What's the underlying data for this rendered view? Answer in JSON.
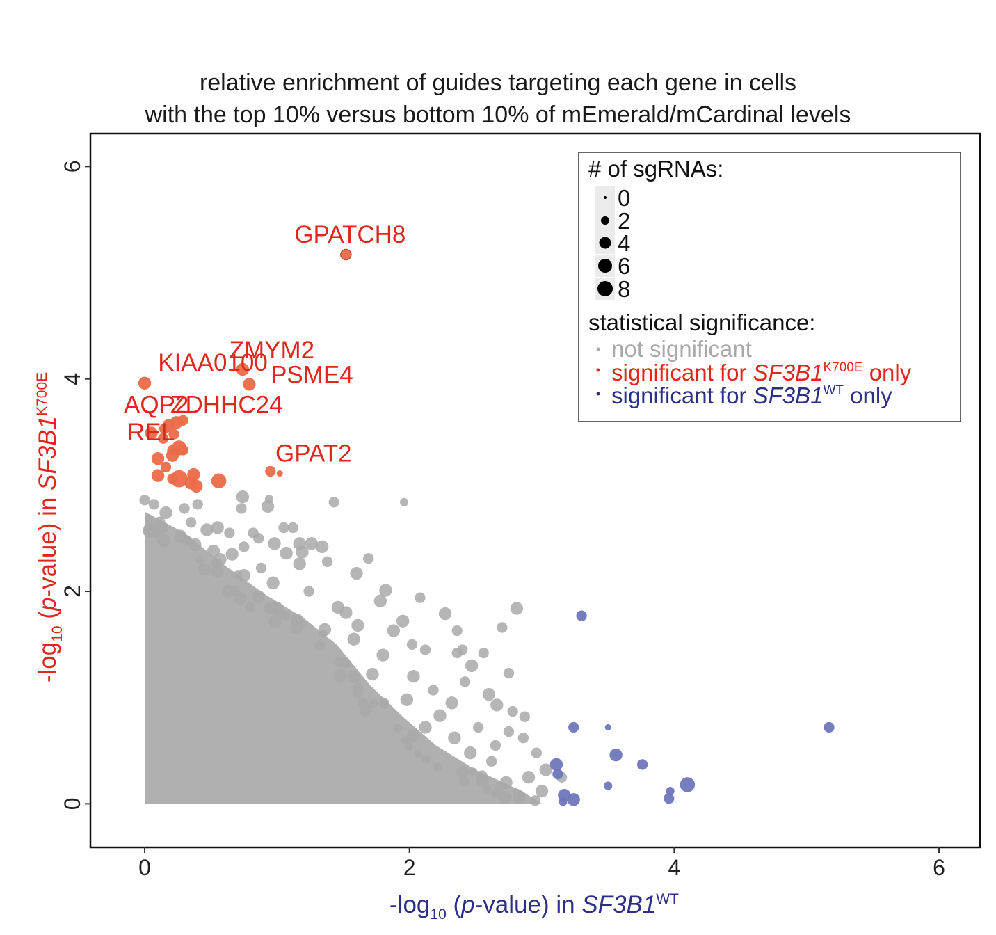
{
  "colors": {
    "not_significant": "#a9a9a9",
    "significant_mutant": "#ec6a48",
    "significant_wt": "#6f77bd",
    "label_red": "#e0261d",
    "label_blue": "#2b2f86",
    "legend_dot": "#000000"
  },
  "chart_data": {
    "type": "scatter",
    "title": [
      "relative enrichment of guides targeting each gene in cells",
      "with the top 10% versus bottom 10% of mEmerald/mCardinal levels"
    ],
    "xlabel": {
      "prefix": "-log",
      "sub": "10",
      "mid": " (",
      "italic_p": "p",
      "rest": "-value) in ",
      "gene": "SF3B1",
      "sup": "WT"
    },
    "ylabel": {
      "prefix": "-log",
      "sub": "10",
      "mid": " (",
      "italic_p": "p",
      "rest": "-value) in ",
      "gene": "SF3B1",
      "sup": "K700E"
    },
    "xlim": [
      -0.41,
      6.31
    ],
    "ylim": [
      -0.41,
      6.31
    ],
    "x_ticks": [
      "0",
      "2",
      "4",
      "6"
    ],
    "y_ticks": [
      "0",
      "2",
      "4",
      "6"
    ],
    "grid": false,
    "legend_position": "top-right",
    "legend": {
      "size_title": "# of sgRNAs:",
      "size_entries": [
        "0",
        "2",
        "4",
        "6",
        "8"
      ],
      "color_title": "statistical significance:",
      "color_entries": [
        {
          "text": "not significant",
          "category": "not_significant"
        },
        {
          "text_pre": "significant for ",
          "gene": "SF3B1",
          "sup": "K700E",
          "text_post": " only",
          "category": "significant_mutant"
        },
        {
          "text_pre": "significant for ",
          "gene": "SF3B1",
          "sup": "WT",
          "text_post": " only",
          "category": "significant_wt"
        }
      ]
    },
    "series": [
      {
        "category": "significant_mutant",
        "points": [
          {
            "x": 1.52,
            "y": 5.17,
            "size": 3,
            "label": "GPATCH8"
          },
          {
            "x": 0.0,
            "y": 3.96,
            "size": 4,
            "label": "KIAA0100"
          },
          {
            "x": 0.74,
            "y": 4.09,
            "size": 4,
            "label": "ZMYM2"
          },
          {
            "x": 0.79,
            "y": 3.95,
            "size": 4,
            "label": "PSME4"
          },
          {
            "x": 0.95,
            "y": 3.13,
            "size": 3,
            "label": "GPAT2"
          },
          {
            "x": 1.02,
            "y": 3.11,
            "size": 1
          },
          {
            "x": 0.18,
            "y": 3.56,
            "size": 4
          },
          {
            "x": 0.24,
            "y": 3.59,
            "size": 4
          },
          {
            "x": 0.29,
            "y": 3.61,
            "size": 3
          },
          {
            "x": 0.15,
            "y": 3.53,
            "size": 3
          },
          {
            "x": 0.22,
            "y": 3.48,
            "size": 3
          },
          {
            "x": 0.14,
            "y": 3.44,
            "size": 3
          },
          {
            "x": 0.05,
            "y": 3.49,
            "size": 4
          },
          {
            "x": 0.26,
            "y": 3.35,
            "size": 5
          },
          {
            "x": 0.21,
            "y": 3.33,
            "size": 3
          },
          {
            "x": 0.29,
            "y": 3.33,
            "size": 3
          },
          {
            "x": 0.21,
            "y": 3.28,
            "size": 4
          },
          {
            "x": 0.1,
            "y": 3.25,
            "size": 4
          },
          {
            "x": 0.16,
            "y": 3.17,
            "size": 3
          },
          {
            "x": 0.37,
            "y": 3.1,
            "size": 4
          },
          {
            "x": 0.1,
            "y": 3.09,
            "size": 4
          },
          {
            "x": 0.26,
            "y": 3.06,
            "size": 6
          },
          {
            "x": 0.21,
            "y": 3.06,
            "size": 3
          },
          {
            "x": 0.56,
            "y": 3.04,
            "size": 5
          },
          {
            "x": 0.35,
            "y": 3.02,
            "size": 4
          },
          {
            "x": 0.39,
            "y": 2.99,
            "size": 4
          }
        ],
        "label_only": [
          {
            "x": 0.0,
            "y": 3.68,
            "label": "AQP2"
          },
          {
            "x": 0.3,
            "y": 3.68,
            "label": "ZDHHC24"
          },
          {
            "x": 0.0,
            "y": 3.42,
            "label": "REL"
          }
        ]
      },
      {
        "category": "significant_wt",
        "points": [
          {
            "x": 3.3,
            "y": 1.77,
            "size": 3
          },
          {
            "x": 5.17,
            "y": 0.72,
            "size": 3
          },
          {
            "x": 3.24,
            "y": 0.72,
            "size": 3
          },
          {
            "x": 3.5,
            "y": 0.72,
            "size": 1
          },
          {
            "x": 3.56,
            "y": 0.46,
            "size": 4
          },
          {
            "x": 3.76,
            "y": 0.37,
            "size": 3
          },
          {
            "x": 3.11,
            "y": 0.37,
            "size": 4
          },
          {
            "x": 3.12,
            "y": 0.28,
            "size": 3
          },
          {
            "x": 4.1,
            "y": 0.18,
            "size": 5
          },
          {
            "x": 3.5,
            "y": 0.17,
            "size": 2
          },
          {
            "x": 3.97,
            "y": 0.12,
            "size": 2
          },
          {
            "x": 3.17,
            "y": 0.08,
            "size": 4
          },
          {
            "x": 3.24,
            "y": 0.04,
            "size": 4
          },
          {
            "x": 3.96,
            "y": 0.05,
            "size": 3
          },
          {
            "x": 3.16,
            "y": 0.02,
            "size": 2
          }
        ]
      },
      {
        "category": "not_significant",
        "points": [
          {
            "x": 1.96,
            "y": 2.84,
            "size": 2
          },
          {
            "x": 1.43,
            "y": 2.84,
            "size": 3
          },
          {
            "x": 0.74,
            "y": 2.89,
            "size": 4
          },
          {
            "x": 0.94,
            "y": 2.87,
            "size": 2
          },
          {
            "x": 0.73,
            "y": 2.78,
            "size": 3
          },
          {
            "x": 0.93,
            "y": 2.8,
            "size": 4
          },
          {
            "x": 1.05,
            "y": 2.6,
            "size": 3
          },
          {
            "x": 1.12,
            "y": 2.6,
            "size": 3
          },
          {
            "x": 0.55,
            "y": 2.6,
            "size": 4
          },
          {
            "x": 0.64,
            "y": 2.55,
            "size": 3
          },
          {
            "x": 0.82,
            "y": 2.55,
            "size": 3
          },
          {
            "x": 0.86,
            "y": 2.5,
            "size": 3
          },
          {
            "x": 0.98,
            "y": 2.45,
            "size": 4
          },
          {
            "x": 1.17,
            "y": 2.45,
            "size": 4
          },
          {
            "x": 1.26,
            "y": 2.45,
            "size": 4
          },
          {
            "x": 1.34,
            "y": 2.42,
            "size": 4
          },
          {
            "x": 0.75,
            "y": 2.42,
            "size": 3
          },
          {
            "x": 1.07,
            "y": 2.36,
            "size": 4
          },
          {
            "x": 1.19,
            "y": 2.37,
            "size": 4
          },
          {
            "x": 1.38,
            "y": 2.28,
            "size": 3
          },
          {
            "x": 1.69,
            "y": 2.31,
            "size": 3
          },
          {
            "x": 0.57,
            "y": 2.3,
            "size": 4
          },
          {
            "x": 1.17,
            "y": 2.26,
            "size": 4
          },
          {
            "x": 0.88,
            "y": 2.22,
            "size": 3
          },
          {
            "x": 0.75,
            "y": 2.15,
            "size": 4
          },
          {
            "x": 1.6,
            "y": 2.17,
            "size": 4
          },
          {
            "x": 1.82,
            "y": 2.01,
            "size": 4
          },
          {
            "x": 2.08,
            "y": 1.94,
            "size": 3
          },
          {
            "x": 1.78,
            "y": 1.91,
            "size": 4
          },
          {
            "x": 2.81,
            "y": 1.84,
            "size": 4
          },
          {
            "x": 1.52,
            "y": 1.8,
            "size": 4
          },
          {
            "x": 2.27,
            "y": 1.79,
            "size": 4
          },
          {
            "x": 1.61,
            "y": 1.68,
            "size": 4
          },
          {
            "x": 2.7,
            "y": 1.66,
            "size": 3
          },
          {
            "x": 1.95,
            "y": 1.72,
            "size": 4
          },
          {
            "x": 1.88,
            "y": 1.63,
            "size": 4
          },
          {
            "x": 2.36,
            "y": 1.63,
            "size": 3
          },
          {
            "x": 2.02,
            "y": 1.5,
            "size": 3
          },
          {
            "x": 2.12,
            "y": 1.45,
            "size": 3
          },
          {
            "x": 2.36,
            "y": 1.42,
            "size": 3
          },
          {
            "x": 2.4,
            "y": 1.45,
            "size": 3
          },
          {
            "x": 2.47,
            "y": 1.3,
            "size": 4
          },
          {
            "x": 2.56,
            "y": 1.42,
            "size": 3
          },
          {
            "x": 2.75,
            "y": 1.23,
            "size": 3
          },
          {
            "x": 2.42,
            "y": 1.15,
            "size": 3
          },
          {
            "x": 2.6,
            "y": 1.03,
            "size": 4
          },
          {
            "x": 2.66,
            "y": 0.93,
            "size": 4
          },
          {
            "x": 2.78,
            "y": 0.87,
            "size": 3
          },
          {
            "x": 2.87,
            "y": 0.82,
            "size": 3
          },
          {
            "x": 2.75,
            "y": 0.68,
            "size": 3
          },
          {
            "x": 2.86,
            "y": 0.62,
            "size": 3
          },
          {
            "x": 2.65,
            "y": 0.55,
            "size": 3
          },
          {
            "x": 2.96,
            "y": 0.48,
            "size": 3
          },
          {
            "x": 3.03,
            "y": 0.32,
            "size": 4
          },
          {
            "x": 2.9,
            "y": 0.25,
            "size": 4
          },
          {
            "x": 3.0,
            "y": 0.12,
            "size": 4
          },
          {
            "x": 2.95,
            "y": 0.03,
            "size": 3
          },
          {
            "x": 2.83,
            "y": 0.06,
            "size": 4
          },
          {
            "x": 2.55,
            "y": 0.22,
            "size": 4
          },
          {
            "x": 2.73,
            "y": 0.2,
            "size": 4
          },
          {
            "x": 2.4,
            "y": 0.3,
            "size": 4
          },
          {
            "x": 2.62,
            "y": 0.4,
            "size": 3
          },
          {
            "x": 3.15,
            "y": 0.25,
            "size": 3
          },
          {
            "x": 2.34,
            "y": 0.62,
            "size": 4
          },
          {
            "x": 2.23,
            "y": 0.83,
            "size": 4
          },
          {
            "x": 2.52,
            "y": 0.72,
            "size": 3
          },
          {
            "x": 2.18,
            "y": 1.07,
            "size": 3
          },
          {
            "x": 2.03,
            "y": 1.2,
            "size": 4
          },
          {
            "x": 2.32,
            "y": 0.95,
            "size": 4
          },
          {
            "x": 2.46,
            "y": 0.48,
            "size": 4
          },
          {
            "x": 1.24,
            "y": 2.0,
            "size": 3
          },
          {
            "x": 1.46,
            "y": 1.85,
            "size": 4
          },
          {
            "x": 1.15,
            "y": 1.73,
            "size": 4
          },
          {
            "x": 1.36,
            "y": 1.64,
            "size": 4
          },
          {
            "x": 1.58,
            "y": 1.55,
            "size": 4
          },
          {
            "x": 1.8,
            "y": 1.4,
            "size": 4
          },
          {
            "x": 1.72,
            "y": 1.22,
            "size": 4
          },
          {
            "x": 1.98,
            "y": 0.98,
            "size": 4
          },
          {
            "x": 2.12,
            "y": 0.72,
            "size": 4
          },
          {
            "x": 1.67,
            "y": 0.88,
            "size": 4
          },
          {
            "x": 0.4,
            "y": 2.82,
            "size": 3
          },
          {
            "x": 0.3,
            "y": 2.78,
            "size": 3
          },
          {
            "x": 0.16,
            "y": 2.74,
            "size": 4
          },
          {
            "x": 0.0,
            "y": 2.86,
            "size": 3
          },
          {
            "x": 0.07,
            "y": 2.82,
            "size": 3
          },
          {
            "x": 0.35,
            "y": 2.65,
            "size": 3
          },
          {
            "x": 0.47,
            "y": 2.58,
            "size": 4
          },
          {
            "x": 0.27,
            "y": 2.52,
            "size": 4
          },
          {
            "x": 0.04,
            "y": 2.56,
            "size": 4
          },
          {
            "x": 0.13,
            "y": 2.6,
            "size": 4
          },
          {
            "x": 0.52,
            "y": 2.38,
            "size": 4
          },
          {
            "x": 0.38,
            "y": 2.44,
            "size": 4
          },
          {
            "x": 0.66,
            "y": 2.35,
            "size": 4
          },
          {
            "x": 0.45,
            "y": 2.21,
            "size": 4
          },
          {
            "x": 0.97,
            "y": 2.08,
            "size": 4
          },
          {
            "x": 0.63,
            "y": 2.0,
            "size": 4
          },
          {
            "x": 0.86,
            "y": 1.95,
            "size": 4
          }
        ],
        "dense_cloud": {
          "description": "dense mass of points filling the lower-left triangle",
          "hull": [
            [
              0.0,
              0.0
            ],
            [
              0.0,
              2.75
            ],
            [
              0.3,
              2.55
            ],
            [
              0.6,
              2.25
            ],
            [
              0.9,
              1.98
            ],
            [
              1.2,
              1.75
            ],
            [
              1.45,
              1.5
            ],
            [
              1.7,
              1.12
            ],
            [
              1.95,
              0.82
            ],
            [
              2.2,
              0.55
            ],
            [
              2.5,
              0.32
            ],
            [
              2.85,
              0.12
            ],
            [
              3.0,
              0.0
            ]
          ]
        }
      }
    ]
  }
}
